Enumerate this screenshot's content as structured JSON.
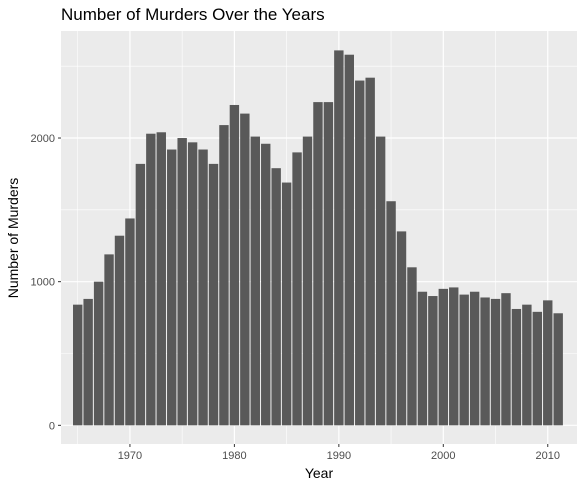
{
  "chart_data": {
    "type": "bar",
    "title": "Number of Murders Over the Years",
    "xlabel": "Year",
    "ylabel": "Number of Murders",
    "x": [
      1965,
      1966,
      1967,
      1968,
      1969,
      1970,
      1971,
      1972,
      1973,
      1974,
      1975,
      1976,
      1977,
      1978,
      1979,
      1980,
      1981,
      1982,
      1983,
      1984,
      1985,
      1986,
      1987,
      1988,
      1989,
      1990,
      1991,
      1992,
      1993,
      1994,
      1995,
      1996,
      1997,
      1998,
      1999,
      2000,
      2001,
      2002,
      2003,
      2004,
      2005,
      2006,
      2007,
      2008,
      2009,
      2010,
      2011
    ],
    "values": [
      840,
      880,
      1000,
      1190,
      1320,
      1440,
      1820,
      2030,
      2040,
      1920,
      2000,
      1970,
      1920,
      1820,
      2090,
      2230,
      2170,
      2010,
      1960,
      1790,
      1690,
      1900,
      2010,
      2250,
      2250,
      2610,
      2580,
      2400,
      2420,
      2010,
      1560,
      1350,
      1100,
      930,
      900,
      950,
      960,
      910,
      930,
      890,
      880,
      920,
      810,
      840,
      790,
      870,
      780
    ],
    "xlim": [
      1963.4,
      2012.8
    ],
    "ylim": [
      -130,
      2745
    ],
    "x_ticks": [
      "1970",
      "1980",
      "1990",
      "2000",
      "2010"
    ],
    "y_ticks": [
      "0",
      "1000",
      "2000"
    ],
    "grid": true,
    "bar_color": "#595959",
    "panel_color": "#ebebeb",
    "grid_color": "#ffffff"
  }
}
